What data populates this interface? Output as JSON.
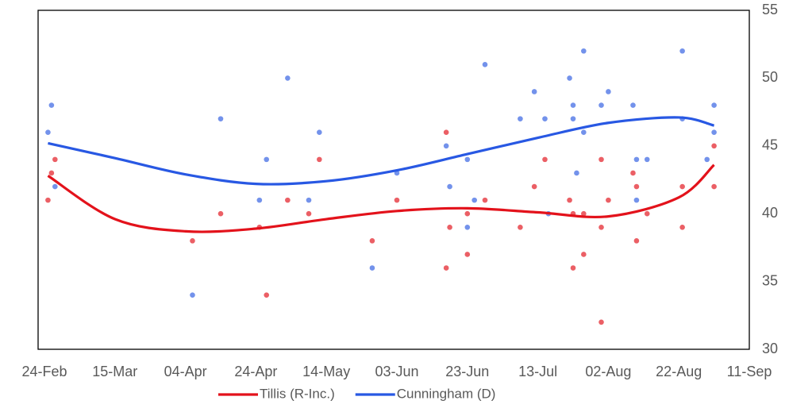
{
  "chart_data": {
    "type": "scatter",
    "xlim": [
      "24-Feb",
      "11-Sep"
    ],
    "xticks": [
      "24-Feb",
      "15-Mar",
      "04-Apr",
      "24-Apr",
      "14-May",
      "03-Jun",
      "23-Jun",
      "13-Jul",
      "02-Aug",
      "22-Aug",
      "11-Sep"
    ],
    "ylim": [
      30,
      55
    ],
    "yticks": [
      30,
      35,
      40,
      45,
      50,
      55
    ],
    "y_axis_side": "right",
    "grid": false,
    "legend": "bottom",
    "series": [
      {
        "name": "Tillis (R-Inc.)",
        "color": "#e8434a",
        "line_color": "#e3121b",
        "x": [
          "25-Feb",
          "26-Feb",
          "27-Feb",
          "06-Apr",
          "14-Apr",
          "25-Apr",
          "27-Apr",
          "03-May",
          "09-May",
          "12-May",
          "27-May",
          "03-Jun",
          "17-Jun",
          "17-Jun",
          "18-Jun",
          "23-Jun",
          "23-Jun",
          "28-Jun",
          "08-Jul",
          "12-Jul",
          "15-Jul",
          "22-Jul",
          "23-Jul",
          "23-Jul",
          "26-Jul",
          "26-Jul",
          "31-Jul",
          "31-Jul",
          "31-Jul",
          "02-Aug",
          "09-Aug",
          "10-Aug",
          "10-Aug",
          "13-Aug",
          "23-Aug",
          "23-Aug",
          "01-Sep",
          "01-Sep"
        ],
        "values": [
          41,
          43,
          44,
          38,
          40,
          39,
          34,
          41,
          40,
          44,
          38,
          41,
          46,
          36,
          39,
          40,
          37,
          41,
          39,
          42,
          44,
          41,
          40,
          36,
          40,
          37,
          39,
          32,
          44,
          41,
          43,
          42,
          38,
          40,
          42,
          39,
          45,
          42
        ],
        "trend": {
          "x": [
            "25-Feb",
            "15-Mar",
            "04-Apr",
            "24-Apr",
            "14-May",
            "03-Jun",
            "23-Jun",
            "13-Jul",
            "02-Aug",
            "22-Aug",
            "01-Sep"
          ],
          "values": [
            42.8,
            39.6,
            38.7,
            38.9,
            39.6,
            40.2,
            40.4,
            40.1,
            39.8,
            41.2,
            43.6
          ]
        }
      },
      {
        "name": "Cunningham (D)",
        "color": "#5b7fe8",
        "line_color": "#2858e3",
        "x": [
          "25-Feb",
          "26-Feb",
          "27-Feb",
          "06-Apr",
          "14-Apr",
          "25-Apr",
          "27-Apr",
          "03-May",
          "09-May",
          "12-May",
          "27-May",
          "03-Jun",
          "17-Jun",
          "18-Jun",
          "23-Jun",
          "23-Jun",
          "25-Jun",
          "28-Jun",
          "08-Jul",
          "12-Jul",
          "15-Jul",
          "16-Jul",
          "22-Jul",
          "23-Jul",
          "23-Jul",
          "24-Jul",
          "26-Jul",
          "26-Jul",
          "31-Jul",
          "02-Aug",
          "09-Aug",
          "10-Aug",
          "10-Aug",
          "13-Aug",
          "23-Aug",
          "23-Aug",
          "30-Aug",
          "01-Sep",
          "01-Sep"
        ],
        "values": [
          46,
          48,
          42,
          34,
          47,
          41,
          44,
          50,
          41,
          46,
          36,
          43,
          45,
          42,
          44,
          39,
          41,
          51,
          47,
          49,
          47,
          40,
          50,
          48,
          47,
          43,
          52,
          46,
          48,
          49,
          48,
          44,
          41,
          44,
          52,
          47,
          44,
          48,
          46
        ],
        "trend": {
          "x": [
            "25-Feb",
            "15-Mar",
            "04-Apr",
            "24-Apr",
            "14-May",
            "03-Jun",
            "23-Jun",
            "13-Jul",
            "02-Aug",
            "22-Aug",
            "01-Sep"
          ],
          "values": [
            45.2,
            44.1,
            42.9,
            42.2,
            42.4,
            43.2,
            44.4,
            45.6,
            46.7,
            47.1,
            46.5
          ]
        }
      }
    ]
  }
}
